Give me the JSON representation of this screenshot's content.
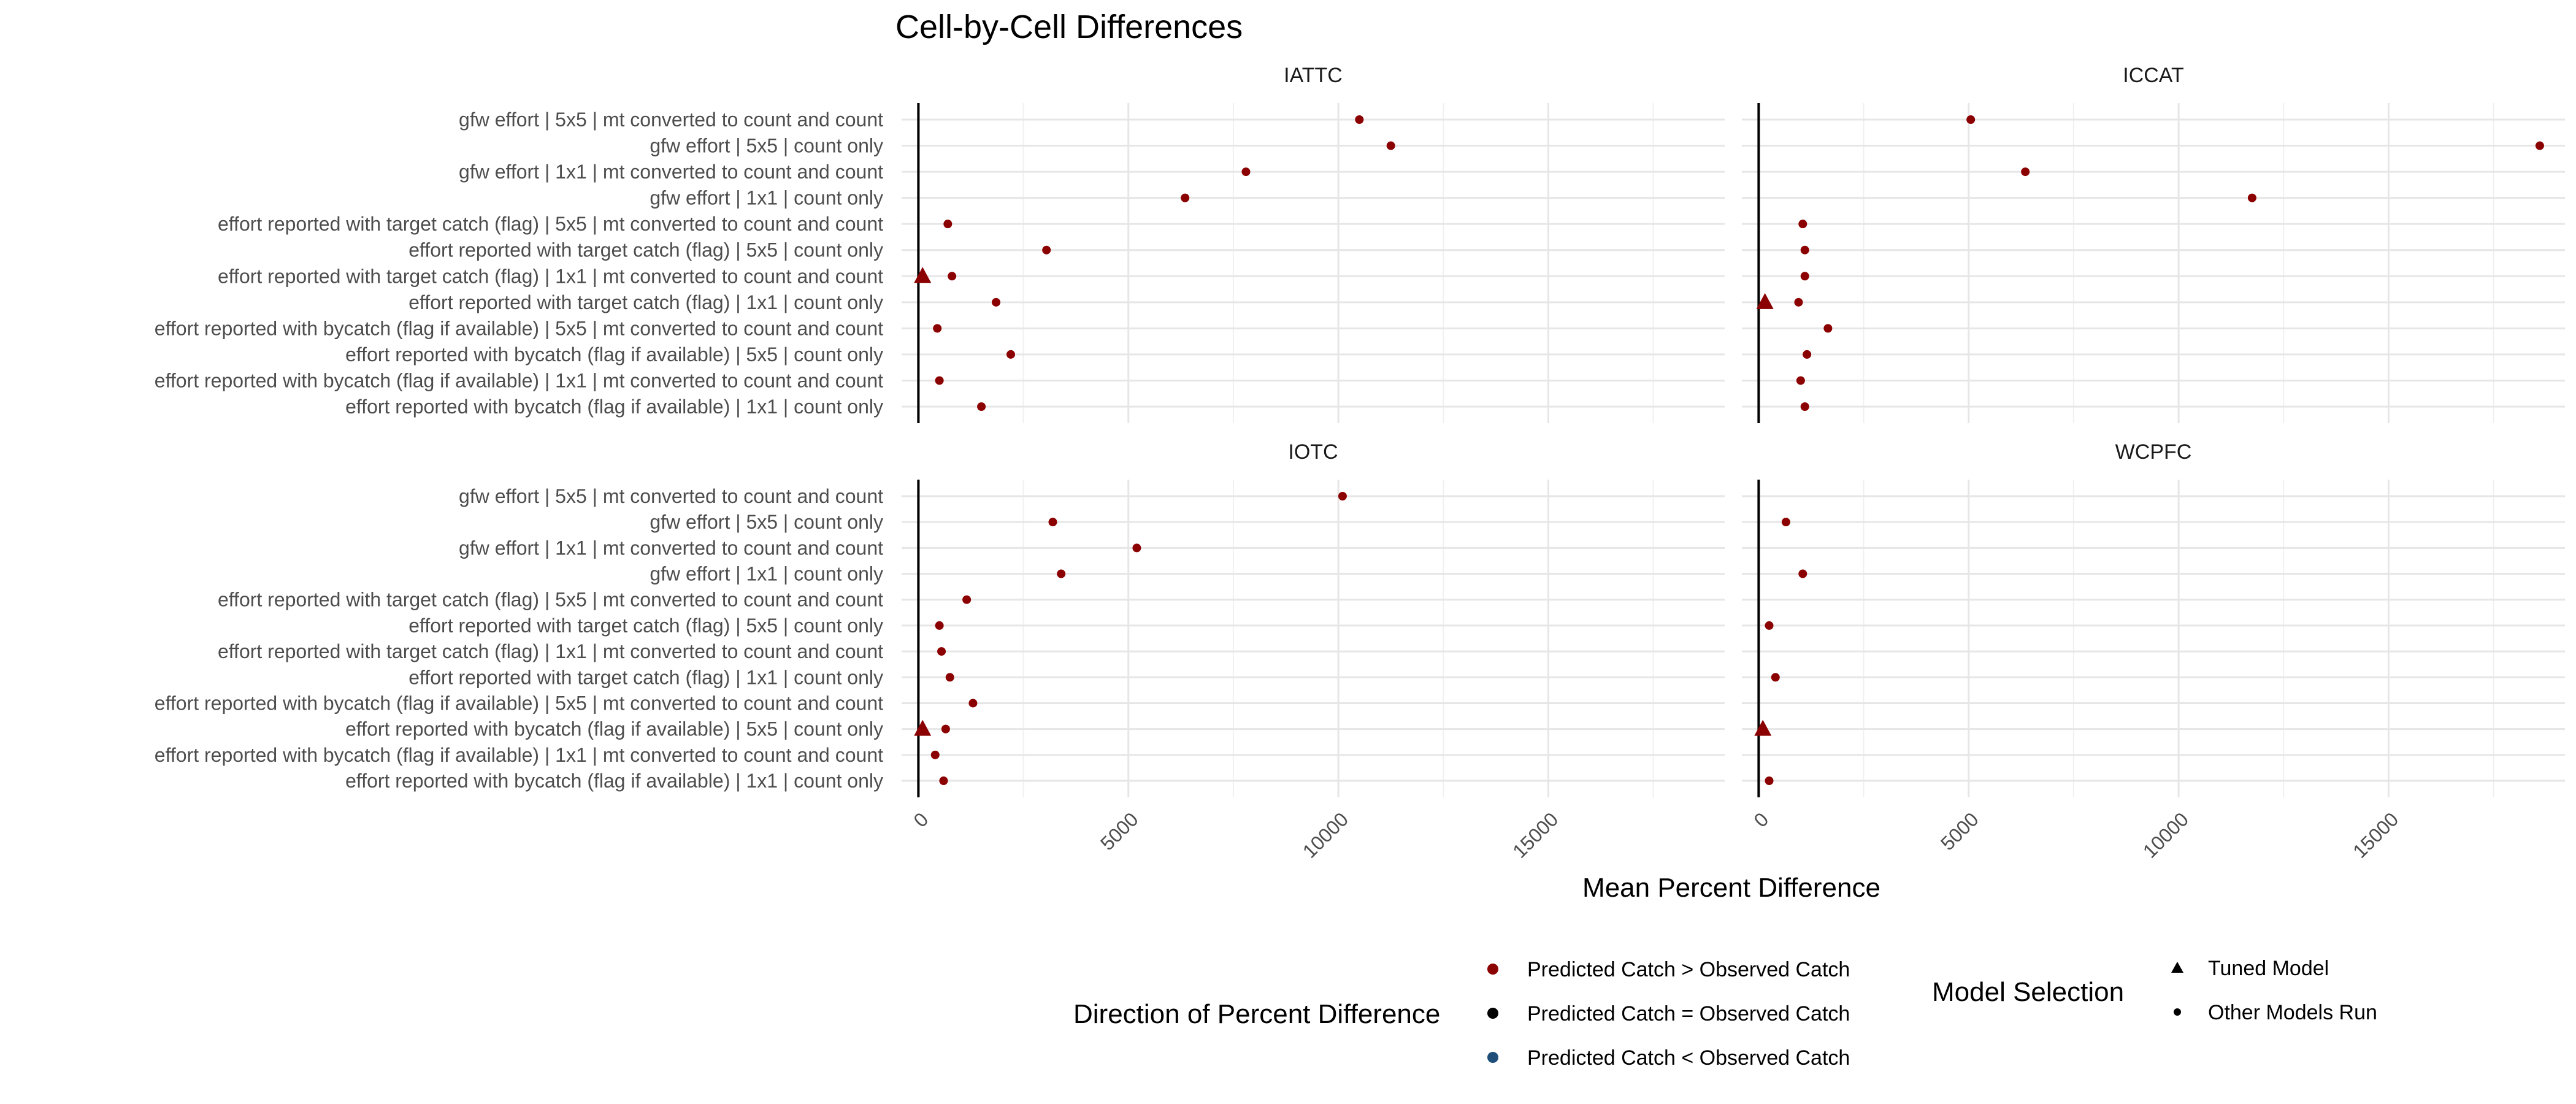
{
  "chart_data": {
    "type": "scatter",
    "title": "Cell-by-Cell Differences",
    "xlabel": "Mean Percent Difference",
    "ylabel": "",
    "xlim": [
      -400,
      19200
    ],
    "xticks": [
      "0",
      "5000",
      "10000",
      "15000"
    ],
    "tick_values": [
      0,
      5000,
      10000,
      15000
    ],
    "grid": true,
    "categories": [
      "gfw effort | 5x5 | mt converted to count and count",
      "gfw effort | 5x5 | count only",
      "gfw effort | 1x1 | mt converted to count and count",
      "gfw effort | 1x1 | count only",
      "effort reported with target catch (flag) | 5x5 | mt converted to count and count",
      "effort reported with target catch (flag) | 5x5 | count only",
      "effort reported with target catch (flag) | 1x1 | mt converted to count and count",
      "effort reported with target catch (flag) | 1x1 | count only",
      "effort reported with bycatch (flag if available) | 5x5 | mt converted to count and count",
      "effort reported with bycatch (flag if available) | 5x5 | count only",
      "effort reported with bycatch (flag if available) | 1x1 | mt converted to count and count",
      "effort reported with bycatch (flag if available) | 1x1 | count only"
    ],
    "panels": [
      {
        "name": "IATTC",
        "values": [
          10500,
          11250,
          7800,
          6350,
          700,
          3050,
          800,
          1850,
          450,
          2200,
          500,
          1500
        ],
        "tuned_index": 6,
        "tuned_value": 100
      },
      {
        "name": "ICCAT",
        "values": [
          5050,
          18600,
          6350,
          11750,
          1050,
          1100,
          1100,
          950,
          1650,
          1150,
          1000,
          1100
        ],
        "tuned_index": 7,
        "tuned_value": 150
      },
      {
        "name": "IOTC",
        "values": [
          10100,
          3200,
          5200,
          3400,
          1150,
          500,
          550,
          750,
          1300,
          650,
          400,
          600
        ],
        "tuned_index": 9,
        "tuned_value": 100
      },
      {
        "name": "WCPFC",
        "values": [
          null,
          650,
          null,
          1050,
          null,
          250,
          null,
          400,
          null,
          100,
          null,
          250
        ],
        "tuned_index": 9,
        "tuned_value": 100
      }
    ],
    "legend": {
      "direction": {
        "title": "Direction of Percent Difference",
        "items": [
          {
            "label": "Predicted Catch > Observed Catch",
            "color": "#8b0000"
          },
          {
            "label": "Predicted Catch = Observed Catch",
            "color": "#000000"
          },
          {
            "label": "Predicted Catch < Observed Catch",
            "color": "#1f4e79"
          }
        ]
      },
      "model": {
        "title": "Model Selection",
        "items": [
          {
            "label": "Tuned Model",
            "shape": "triangle"
          },
          {
            "label": "Other Models Run",
            "shape": "circle"
          }
        ]
      },
      "position": "bottom"
    }
  }
}
